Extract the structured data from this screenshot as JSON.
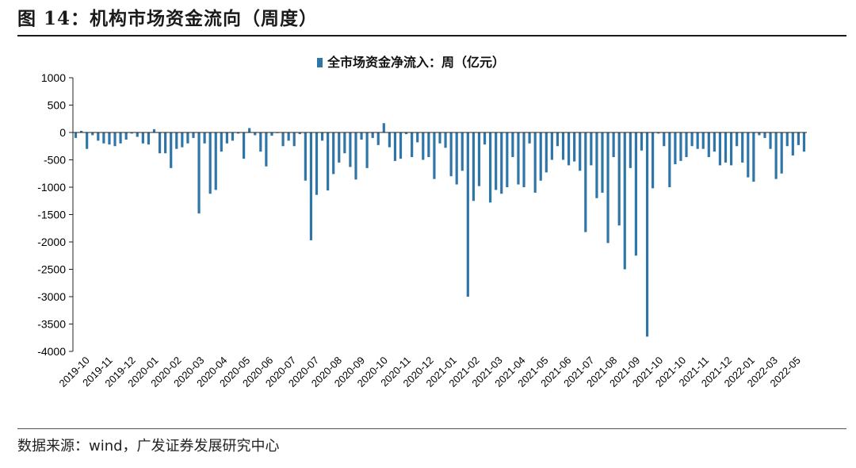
{
  "figure": {
    "title": "图 14：机构市场资金流向（周度）",
    "source": "数据来源：wind，广发证券发展研究中心"
  },
  "colors": {
    "bar": "#2E75A8",
    "axis": "#222222",
    "rule": "#1a1a1a"
  },
  "chart_data": {
    "type": "bar",
    "legend_position": "top",
    "grid": false,
    "ylim": [
      -4000,
      1000
    ],
    "yticks": [
      1000,
      500,
      0,
      -500,
      -1000,
      -1500,
      -2000,
      -2500,
      -3000,
      -3500,
      -4000
    ],
    "series": [
      {
        "name": "全市场资金净流入：周（亿元）",
        "values": [
          -100,
          30,
          -300,
          -50,
          -150,
          -200,
          -220,
          -250,
          -200,
          -130,
          -20,
          -80,
          -200,
          -220,
          60,
          -380,
          -380,
          -650,
          -300,
          -270,
          -200,
          -100,
          -1480,
          -200,
          -1120,
          -1050,
          -350,
          -200,
          -150,
          -20,
          -480,
          80,
          -50,
          -350,
          -620,
          -60,
          -10,
          -250,
          -150,
          -250,
          -30,
          -880,
          -1970,
          -1140,
          -150,
          -1060,
          -760,
          -550,
          -380,
          -630,
          -860,
          -130,
          -650,
          -100,
          -230,
          170,
          -270,
          -520,
          -480,
          -30,
          -450,
          -180,
          -500,
          -450,
          -850,
          -200,
          -280,
          -800,
          -950,
          -700,
          -3000,
          -1250,
          -980,
          -220,
          -1280,
          -1050,
          -1120,
          -1000,
          -450,
          -950,
          -1000,
          -200,
          -1100,
          -880,
          -730,
          -500,
          -250,
          -500,
          -600,
          -530,
          -700,
          -1820,
          -600,
          -1200,
          -1100,
          -2020,
          -450,
          -1700,
          -2500,
          -650,
          -2250,
          -330,
          -3730,
          -1020,
          -20,
          -250,
          -1000,
          -580,
          -520,
          -450,
          -250,
          -300,
          -300,
          -450,
          -350,
          -600,
          -550,
          -600,
          -250,
          -550,
          -820,
          -900,
          -50,
          -100,
          -300,
          -850,
          -750,
          -250,
          -420,
          -230,
          -350
        ]
      }
    ],
    "x_tick_labels": [
      "2019-10",
      "2019-11",
      "2019-12",
      "2020-01",
      "2020-02",
      "2020-03",
      "2020-04",
      "2020-05",
      "2020-06",
      "2020-07",
      "2020-07",
      "2020-08",
      "2020-09",
      "2020-10",
      "2020-11",
      "2020-12",
      "2021-01",
      "2021-02",
      "2021-03",
      "2021-04",
      "2021-05",
      "2021-06",
      "2021-07",
      "2021-08",
      "2021-09",
      "2021-10",
      "2021-10",
      "2021-11",
      "2021-12",
      "2022-01",
      "2022-03",
      "2022-05"
    ]
  }
}
